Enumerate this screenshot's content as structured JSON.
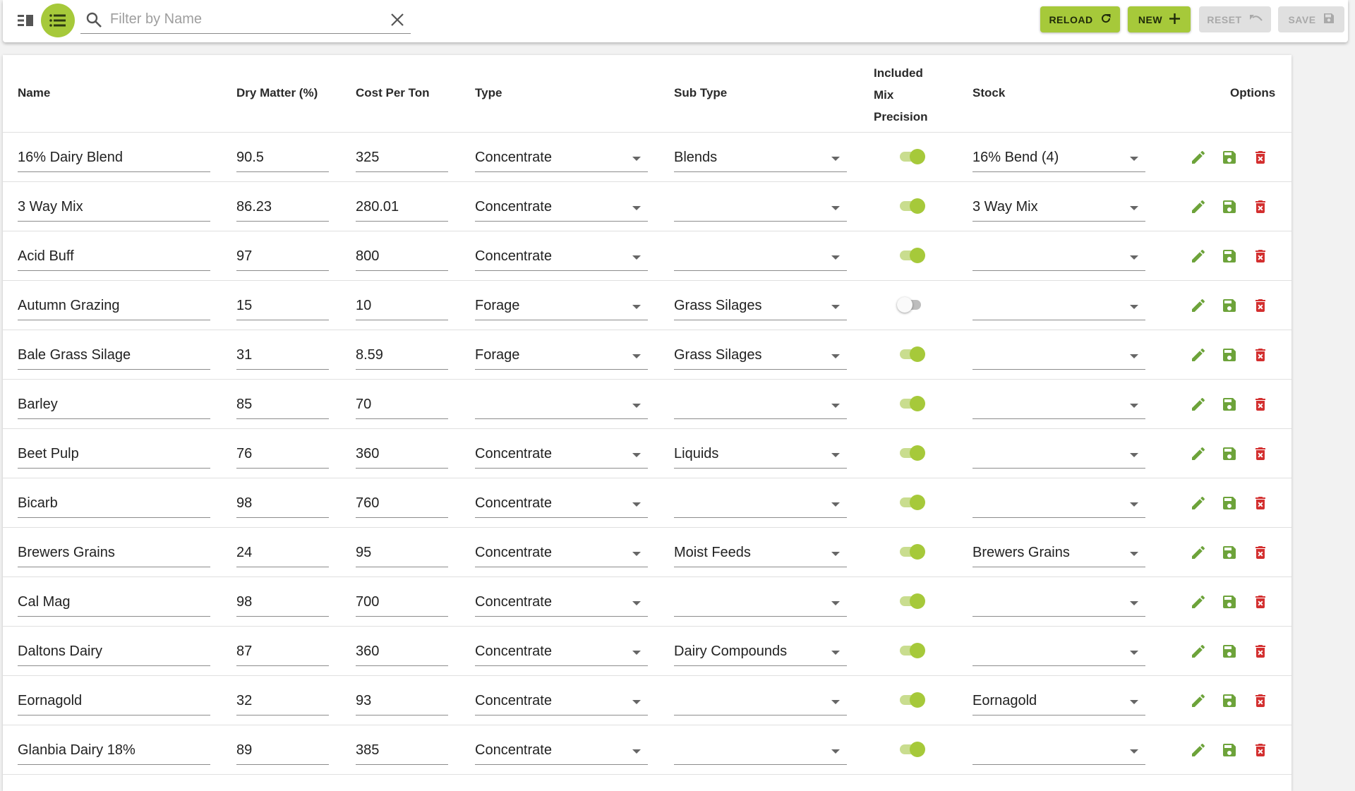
{
  "toolbar": {
    "search_placeholder": "Filter by Name",
    "search_value": "",
    "reload_label": "RELOAD",
    "new_label": "NEW",
    "reset_label": "RESET",
    "save_label": "SAVE"
  },
  "colors": {
    "accent": "#a6c93a",
    "delete": "#d32f2f",
    "edit": "#6da33a"
  },
  "columns": {
    "name": "Name",
    "dry_matter": "Dry Matter (%)",
    "cost": "Cost Per Ton",
    "type": "Type",
    "sub_type": "Sub Type",
    "included_line1": "Included",
    "included_line2": "Mix",
    "included_line3": "Precision",
    "stock": "Stock",
    "options": "Options"
  },
  "rows": [
    {
      "name": "16% Dairy Blend",
      "dry_matter": "90.5",
      "cost": "325",
      "type": "Concentrate",
      "sub_type": "Blends",
      "included": true,
      "stock": "16% Bend (4)"
    },
    {
      "name": "3 Way Mix",
      "dry_matter": "86.23",
      "cost": "280.01",
      "type": "Concentrate",
      "sub_type": "",
      "included": true,
      "stock": "3 Way Mix"
    },
    {
      "name": "Acid Buff",
      "dry_matter": "97",
      "cost": "800",
      "type": "Concentrate",
      "sub_type": "",
      "included": true,
      "stock": ""
    },
    {
      "name": "Autumn Grazing",
      "dry_matter": "15",
      "cost": "10",
      "type": "Forage",
      "sub_type": "Grass Silages",
      "included": false,
      "stock": ""
    },
    {
      "name": "Bale Grass Silage",
      "dry_matter": "31",
      "cost": "8.59",
      "type": "Forage",
      "sub_type": "Grass Silages",
      "included": true,
      "stock": ""
    },
    {
      "name": "Barley",
      "dry_matter": "85",
      "cost": "70",
      "type": "",
      "sub_type": "",
      "included": true,
      "stock": ""
    },
    {
      "name": "Beet Pulp",
      "dry_matter": "76",
      "cost": "360",
      "type": "Concentrate",
      "sub_type": "Liquids",
      "included": true,
      "stock": ""
    },
    {
      "name": "Bicarb",
      "dry_matter": "98",
      "cost": "760",
      "type": "Concentrate",
      "sub_type": "",
      "included": true,
      "stock": ""
    },
    {
      "name": "Brewers Grains",
      "dry_matter": "24",
      "cost": "95",
      "type": "Concentrate",
      "sub_type": "Moist Feeds",
      "included": true,
      "stock": "Brewers Grains"
    },
    {
      "name": "Cal Mag",
      "dry_matter": "98",
      "cost": "700",
      "type": "Concentrate",
      "sub_type": "",
      "included": true,
      "stock": ""
    },
    {
      "name": "Daltons Dairy",
      "dry_matter": "87",
      "cost": "360",
      "type": "Concentrate",
      "sub_type": "Dairy Compounds",
      "included": true,
      "stock": ""
    },
    {
      "name": "Eornagold",
      "dry_matter": "32",
      "cost": "93",
      "type": "Concentrate",
      "sub_type": "",
      "included": true,
      "stock": "Eornagold"
    },
    {
      "name": "Glanbia Dairy 18%",
      "dry_matter": "89",
      "cost": "385",
      "type": "Concentrate",
      "sub_type": "",
      "included": true,
      "stock": ""
    }
  ]
}
